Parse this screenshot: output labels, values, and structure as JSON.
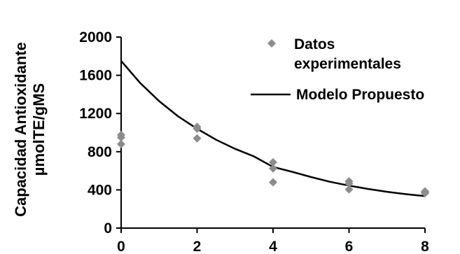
{
  "chart_data": {
    "type": "scatter",
    "ylabel_lines": [
      "Capacidad Antioxidante",
      "µmolTE/gMS"
    ],
    "xlim": [
      0,
      8
    ],
    "ylim": [
      0,
      2000
    ],
    "x_ticks": [
      0,
      2,
      4,
      6,
      8
    ],
    "y_ticks": [
      0,
      400,
      800,
      1200,
      1600,
      2000
    ],
    "grid": false,
    "legend_position": "top-right",
    "series": [
      {
        "name": "Datos experimentales",
        "kind": "scatter",
        "marker": "diamond",
        "color": "#8c8c8c",
        "points": [
          {
            "x": 0,
            "y": 975
          },
          {
            "x": 0,
            "y": 950
          },
          {
            "x": 0,
            "y": 880
          },
          {
            "x": 2,
            "y": 1060
          },
          {
            "x": 2,
            "y": 1040
          },
          {
            "x": 2,
            "y": 940
          },
          {
            "x": 4,
            "y": 690
          },
          {
            "x": 4,
            "y": 625
          },
          {
            "x": 4,
            "y": 480
          },
          {
            "x": 6,
            "y": 490
          },
          {
            "x": 6,
            "y": 465
          },
          {
            "x": 6,
            "y": 405
          },
          {
            "x": 8,
            "y": 385
          },
          {
            "x": 8,
            "y": 375
          },
          {
            "x": 8,
            "y": 365
          }
        ]
      },
      {
        "name": "Modelo Propuesto",
        "kind": "line",
        "color": "#000000",
        "points": [
          {
            "x": 0,
            "y": 1750
          },
          {
            "x": 0.5,
            "y": 1520
          },
          {
            "x": 1,
            "y": 1330
          },
          {
            "x": 1.5,
            "y": 1170
          },
          {
            "x": 2,
            "y": 1040
          },
          {
            "x": 2.5,
            "y": 925
          },
          {
            "x": 3,
            "y": 830
          },
          {
            "x": 3.5,
            "y": 750
          },
          {
            "x": 4,
            "y": 640
          },
          {
            "x": 4.5,
            "y": 590
          },
          {
            "x": 5,
            "y": 535
          },
          {
            "x": 5.5,
            "y": 485
          },
          {
            "x": 6,
            "y": 445
          },
          {
            "x": 6.5,
            "y": 410
          },
          {
            "x": 7,
            "y": 380
          },
          {
            "x": 7.5,
            "y": 355
          },
          {
            "x": 8,
            "y": 335
          }
        ]
      }
    ],
    "legend": [
      {
        "label_lines": [
          "Datos",
          "experimentales"
        ],
        "series": 0
      },
      {
        "label_lines": [
          "Modelo Propuesto"
        ],
        "series": 1
      }
    ]
  }
}
